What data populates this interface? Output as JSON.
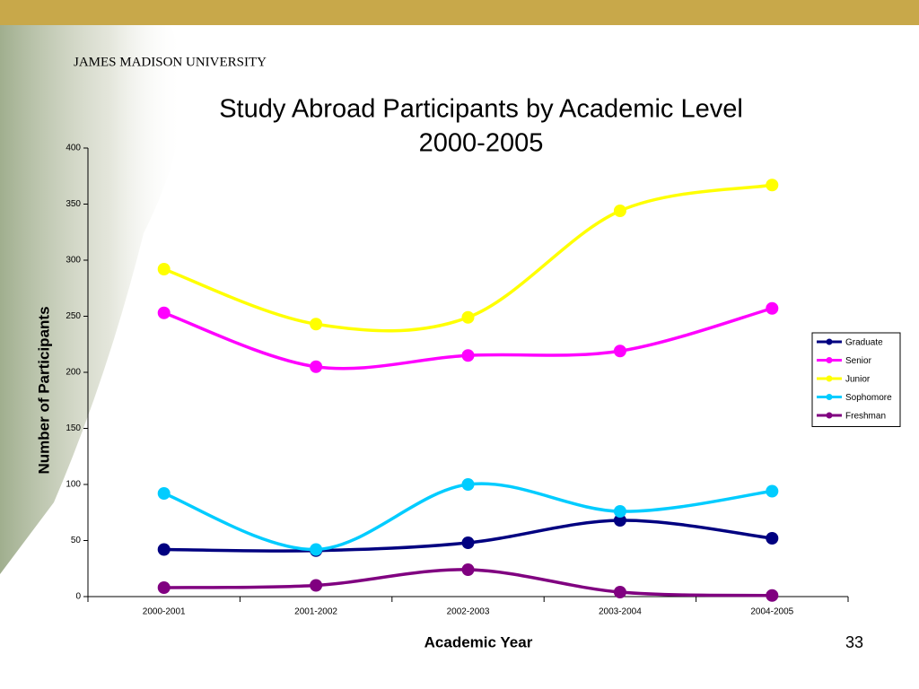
{
  "header": {
    "institution": "JAMES MADISON UNIVERSITY"
  },
  "slide_number": 33,
  "chart_data": {
    "type": "line",
    "title": "Study Abroad Participants by Academic Level",
    "subtitle": "2000-2005",
    "x_label": "Academic Year",
    "y_label": "Number of Participants",
    "categories": [
      "2000-2001",
      "2001-2002",
      "2002-2003",
      "2003-2004",
      "2004-2005"
    ],
    "series": [
      {
        "name": "Graduate",
        "color": "#000080",
        "values": [
          42,
          41,
          48,
          68,
          52
        ]
      },
      {
        "name": "Senior",
        "color": "#ff00ff",
        "values": [
          253,
          205,
          215,
          219,
          257
        ]
      },
      {
        "name": "Junior",
        "color": "#ffff00",
        "values": [
          292,
          243,
          249,
          344,
          367
        ]
      },
      {
        "name": "Sophomore",
        "color": "#00ccff",
        "values": [
          92,
          42,
          100,
          76,
          94
        ]
      },
      {
        "name": "Freshman",
        "color": "#800080",
        "values": [
          8,
          10,
          24,
          4,
          1
        ]
      }
    ],
    "ylim": [
      0,
      400
    ],
    "yticks": [
      0,
      50,
      100,
      150,
      200,
      250,
      300,
      350,
      400
    ],
    "legend": "right",
    "smooth": true
  }
}
